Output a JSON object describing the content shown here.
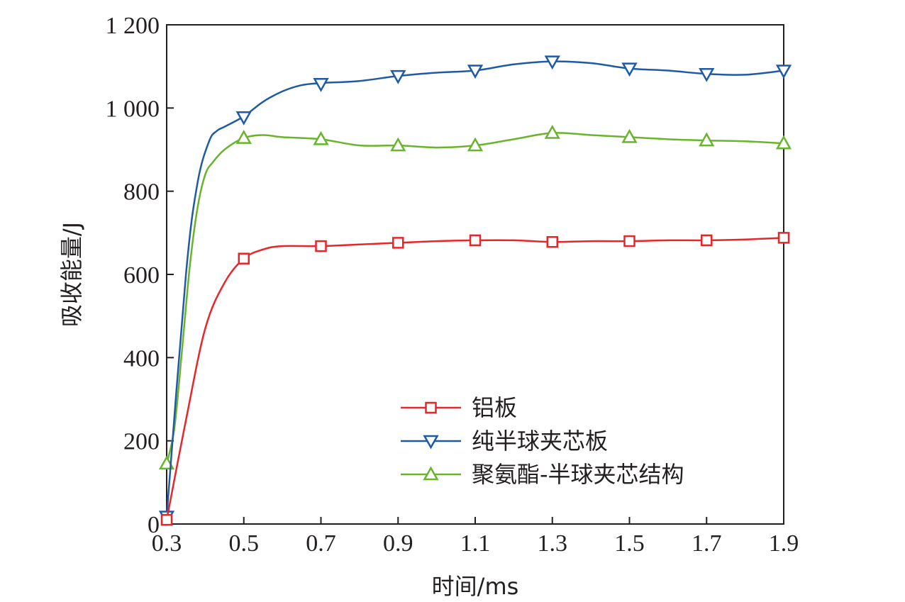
{
  "chart_data": {
    "type": "line",
    "xlabel": "时间/ms",
    "ylabel": "吸收能量/J",
    "xlim": [
      0.3,
      1.9
    ],
    "ylim": [
      0,
      1200
    ],
    "x_ticks": [
      "0.3",
      "0.5",
      "0.7",
      "0.9",
      "1.1",
      "1.3",
      "1.5",
      "1.7",
      "1.9"
    ],
    "y_ticks": [
      "0",
      "200",
      "400",
      "600",
      "800",
      "1 000",
      "1 200"
    ],
    "legend_position": "bottom-right",
    "grid": false,
    "series": [
      {
        "name": "铝板",
        "color": "#e8262a",
        "marker": "square",
        "x": [
          0.3,
          0.35,
          0.4,
          0.45,
          0.5,
          0.55,
          0.6,
          0.7,
          0.8,
          0.9,
          1.0,
          1.1,
          1.2,
          1.3,
          1.4,
          1.5,
          1.6,
          1.7,
          1.8,
          1.9
        ],
        "y": [
          10,
          250,
          470,
          580,
          638,
          660,
          668,
          668,
          672,
          676,
          680,
          682,
          682,
          678,
          680,
          680,
          682,
          682,
          684,
          688
        ],
        "markers_x": [
          0.3,
          0.5,
          0.7,
          0.9,
          1.1,
          1.3,
          1.5,
          1.7,
          1.9
        ],
        "markers_y": [
          10,
          638,
          668,
          676,
          682,
          678,
          680,
          682,
          688
        ]
      },
      {
        "name": "纯半球夹芯板",
        "color": "#1f5aa6",
        "marker": "triangle-down",
        "x": [
          0.3,
          0.35,
          0.38,
          0.41,
          0.43,
          0.45,
          0.5,
          0.55,
          0.6,
          0.65,
          0.7,
          0.8,
          0.9,
          1.0,
          1.1,
          1.2,
          1.3,
          1.4,
          1.5,
          1.6,
          1.7,
          1.8,
          1.9
        ],
        "y": [
          18,
          600,
          820,
          920,
          945,
          955,
          980,
          1015,
          1040,
          1055,
          1060,
          1065,
          1077,
          1085,
          1090,
          1105,
          1112,
          1108,
          1095,
          1090,
          1082,
          1080,
          1090
        ],
        "markers_x": [
          0.3,
          0.5,
          0.7,
          0.9,
          1.1,
          1.3,
          1.5,
          1.7,
          1.9
        ],
        "markers_y": [
          18,
          978,
          1058,
          1077,
          1090,
          1112,
          1095,
          1082,
          1090
        ]
      },
      {
        "name": "聚氨酯-半球夹芯结构",
        "color": "#6ab42d",
        "marker": "triangle-up",
        "x": [
          0.3,
          0.32,
          0.34,
          0.36,
          0.38,
          0.4,
          0.42,
          0.45,
          0.5,
          0.55,
          0.6,
          0.7,
          0.8,
          0.9,
          1.0,
          1.1,
          1.2,
          1.3,
          1.4,
          1.5,
          1.6,
          1.7,
          1.8,
          1.9
        ],
        "y": [
          145,
          230,
          420,
          620,
          760,
          840,
          870,
          900,
          928,
          935,
          930,
          925,
          910,
          910,
          905,
          910,
          925,
          940,
          935,
          930,
          925,
          922,
          920,
          915
        ],
        "markers_x": [
          0.3,
          0.5,
          0.7,
          0.9,
          1.1,
          1.3,
          1.5,
          1.7,
          1.9
        ],
        "markers_y": [
          145,
          928,
          925,
          910,
          910,
          940,
          930,
          922,
          915
        ]
      }
    ]
  }
}
